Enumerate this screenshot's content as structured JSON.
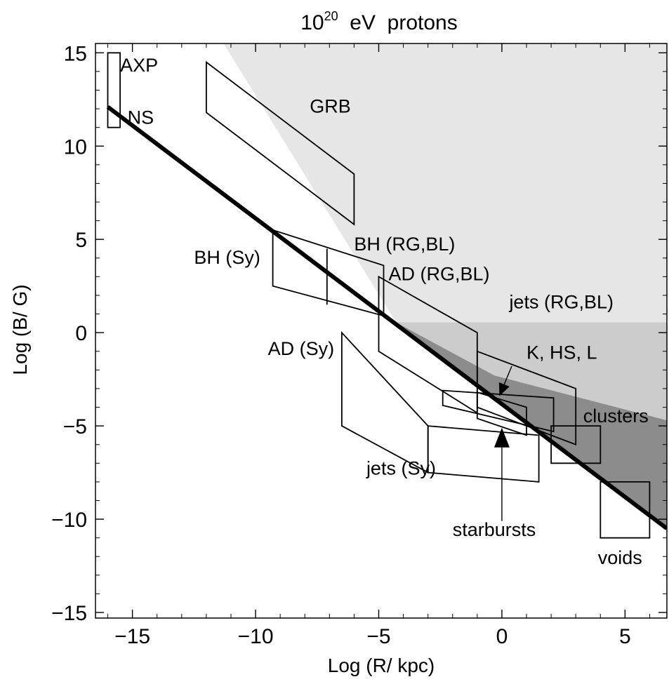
{
  "chart_data": {
    "type": "scatter",
    "title": "10",
    "title_sup": "20",
    "title_rest": "  eV  protons",
    "xlabel": "Log (R/ kpc)",
    "ylabel": "Log (B/ G)",
    "xlim": [
      -16.5,
      6.7
    ],
    "ylim": [
      -15.3,
      15.5
    ],
    "xticks": [
      -15,
      -10,
      -5,
      0,
      5
    ],
    "xtick_labels": [
      "−15",
      "−10",
      "−5",
      "0",
      "5"
    ],
    "yticks": [
      15,
      10,
      5,
      0,
      -5,
      -10,
      -15
    ],
    "ytick_labels": [
      "15",
      "10",
      "5",
      "0",
      "−5",
      "−10",
      "−15"
    ],
    "grid": false,
    "colors": {
      "light_region": "#e6e6e6",
      "mid_region": "#cccccc",
      "dark_region": "#8c8c8c",
      "lines": "#000000"
    },
    "shaded_regions": [
      {
        "name": "light",
        "polygon": [
          [
            -11.3,
            15.5
          ],
          [
            6.7,
            15.5
          ],
          [
            6.7,
            0.55
          ],
          [
            -4.3,
            0.55
          ]
        ]
      },
      {
        "name": "mid",
        "polygon": [
          [
            -4.3,
            0.55
          ],
          [
            6.7,
            0.55
          ],
          [
            6.7,
            -4.7
          ],
          [
            -0.3,
            -2.3
          ]
        ]
      },
      {
        "name": "dark",
        "polygon": [
          [
            -4.3,
            0.55
          ],
          [
            -0.3,
            -2.3
          ],
          [
            6.7,
            -4.7
          ],
          [
            6.7,
            -10.5
          ]
        ]
      }
    ],
    "hillas_line": {
      "x": [
        -16,
        6.7
      ],
      "y": [
        12.1,
        -10.5
      ]
    },
    "source_regions": [
      {
        "label": "AXP",
        "polygon": [
          [
            -16.0,
            15.0
          ],
          [
            -15.5,
            15.0
          ],
          [
            -15.5,
            11.0
          ],
          [
            -16.0,
            11.0
          ]
        ]
      },
      {
        "label": "GRB",
        "polygon": [
          [
            -12.0,
            14.5
          ],
          [
            -6.0,
            8.5
          ],
          [
            -6.0,
            5.8
          ],
          [
            -12.0,
            11.8
          ]
        ]
      },
      {
        "label": "BH (Sy)",
        "polygon": [
          [
            -9.3,
            5.5
          ],
          [
            -4.8,
            3.6
          ],
          [
            -4.8,
            0.9
          ],
          [
            -9.3,
            2.5
          ]
        ]
      },
      {
        "label": "BH (RG,BL)",
        "polygon": [
          [
            -7.1,
            4.5
          ],
          [
            -7.1,
            1.5
          ]
        ]
      },
      {
        "label": "AD (RG,BL)",
        "polygon": [
          [
            -5.0,
            3.0
          ],
          [
            -1.0,
            0.0
          ],
          [
            -1.0,
            -4.3
          ],
          [
            -5.0,
            -1.0
          ]
        ]
      },
      {
        "label": "K, HS, L",
        "polygon": [
          [
            -1.0,
            -1.0
          ],
          [
            3.0,
            -3.0
          ],
          [
            3.0,
            -6.0
          ],
          [
            -1.0,
            -4.0
          ]
        ]
      },
      {
        "label": "jets (RG,BL)",
        "polygon": [
          [
            -2.4,
            -3.1
          ],
          [
            2.1,
            -3.5
          ],
          [
            2.1,
            -5.3
          ],
          [
            -2.4,
            -3.9
          ]
        ]
      },
      {
        "label": "jets (Sy)",
        "polygon": [
          [
            -3.0,
            -5.0
          ],
          [
            1.5,
            -5.5
          ],
          [
            1.5,
            -8.0
          ],
          [
            -3.0,
            -7.5
          ]
        ]
      },
      {
        "label": "AD (Sy)",
        "polygon": [
          [
            -6.5,
            0.0
          ],
          [
            -3.0,
            -5.0
          ],
          [
            -3.0,
            -7.5
          ],
          [
            -6.5,
            -5.0
          ]
        ]
      },
      {
        "label": "starbursts",
        "polygon": [
          [
            -1.0,
            -3.2
          ],
          [
            1.0,
            -4.0
          ],
          [
            1.0,
            -5.5
          ],
          [
            -1.0,
            -4.6
          ]
        ]
      },
      {
        "label": "clusters",
        "polygon": [
          [
            2.0,
            -5.0
          ],
          [
            4.0,
            -5.0
          ],
          [
            4.0,
            -7.0
          ],
          [
            2.0,
            -7.0
          ]
        ]
      },
      {
        "label": "voids",
        "polygon": [
          [
            4.0,
            -8.0
          ],
          [
            6.0,
            -8.0
          ],
          [
            6.0,
            -11.0
          ],
          [
            4.0,
            -11.0
          ]
        ]
      }
    ],
    "annotations": [
      {
        "text": "AXP",
        "x": -15.5,
        "y": 14.0
      },
      {
        "text": "NS",
        "x": -15.2,
        "y": 11.2
      },
      {
        "text": "GRB",
        "x": -7.8,
        "y": 11.8
      },
      {
        "text": "BH (Sy)",
        "x": -12.5,
        "y": 3.7
      },
      {
        "text": "BH (RG,BL)",
        "x": -6.0,
        "y": 4.4
      },
      {
        "text": "AD (RG,BL)",
        "x": -4.6,
        "y": 2.8
      },
      {
        "text": "jets (RG,BL)",
        "x": 0.3,
        "y": 1.3
      },
      {
        "text": "K, HS, L",
        "x": 1.0,
        "y": -1.4
      },
      {
        "text": "AD (Sy)",
        "x": -9.5,
        "y": -1.2
      },
      {
        "text": "clusters",
        "x": 3.3,
        "y": -4.8
      },
      {
        "text": "jets (Sy)",
        "x": -5.5,
        "y": -7.6
      },
      {
        "text": "starbursts",
        "x": -2.0,
        "y": -10.9
      },
      {
        "text": "voids",
        "x": 3.9,
        "y": -12.4
      }
    ],
    "arrows": [
      {
        "name": "jets-rg-bl-arrow",
        "from": [
          0.4,
          -1.8
        ],
        "to": [
          -0.1,
          -3.4
        ],
        "head": "small"
      },
      {
        "name": "starbursts-arrow",
        "from": [
          0.0,
          -10.1
        ],
        "to": [
          0.0,
          -5.1
        ],
        "head": "large"
      }
    ]
  }
}
